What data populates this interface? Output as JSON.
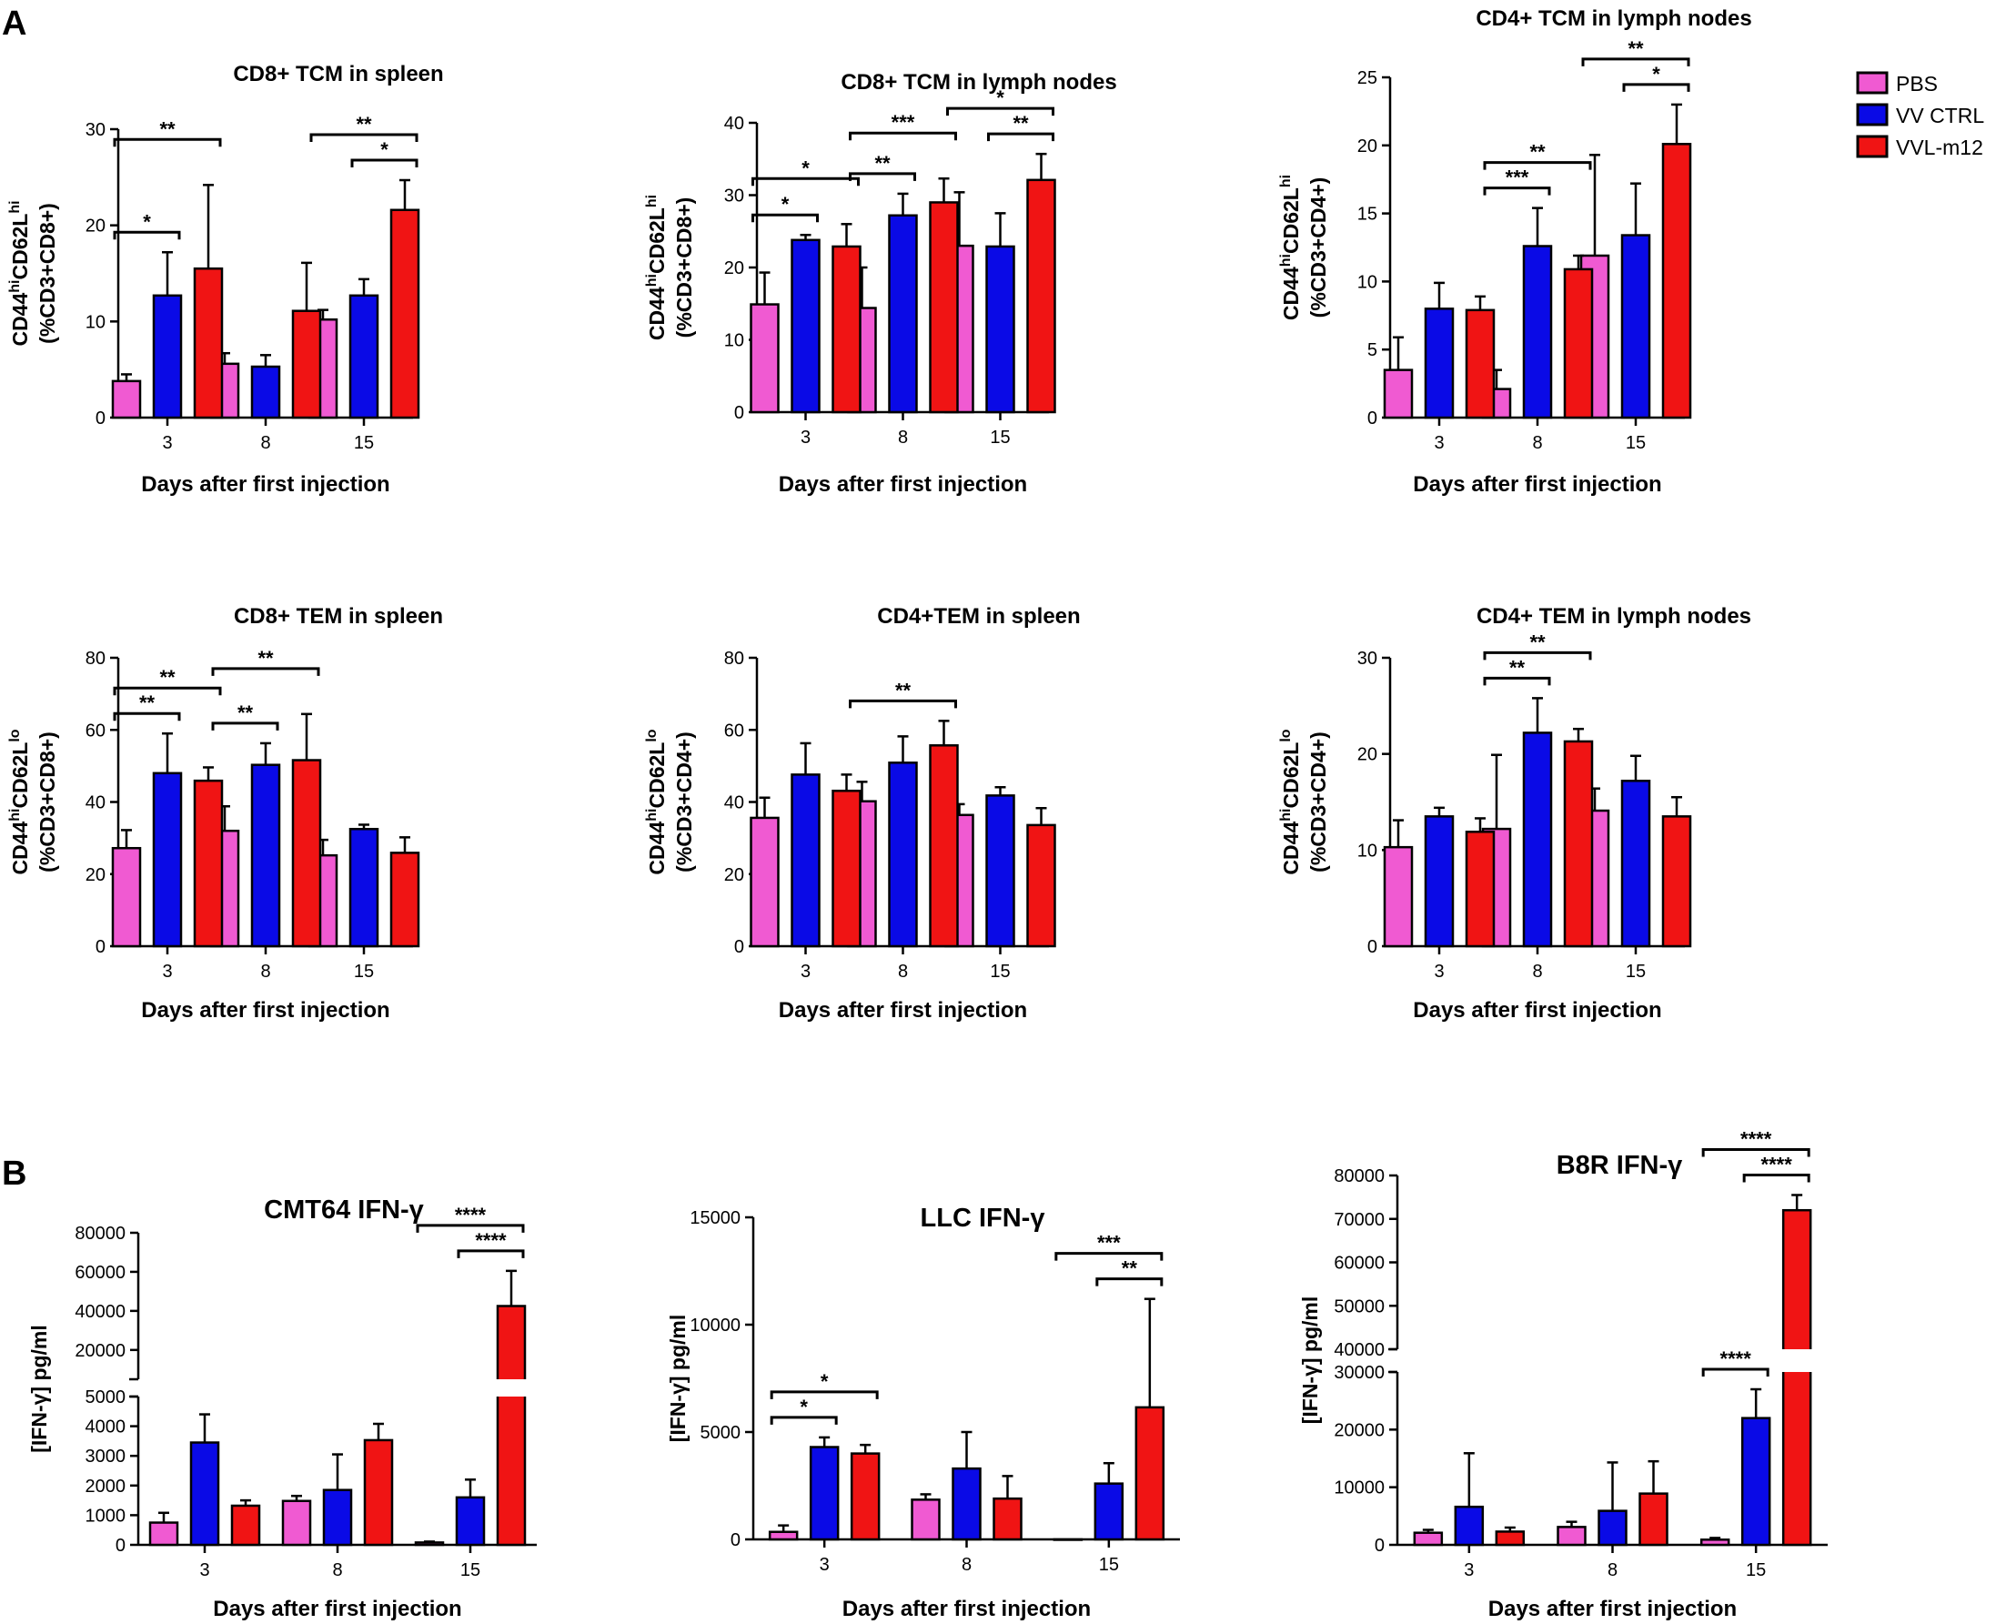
{
  "figure": {
    "panel_labels": [
      "A",
      "B"
    ],
    "colors": {
      "PBS": "#f05ad2",
      "VV CTRL": "#0a0ae6",
      "VVL-m12": "#f01414",
      "axis": "#000000"
    }
  },
  "legend": {
    "entries": [
      {
        "label": "PBS",
        "color": "#f05ad2"
      },
      {
        "label": "VV CTRL",
        "color": "#0a0ae6"
      },
      {
        "label": "VVL-m12",
        "color": "#f01414"
      }
    ]
  },
  "chart_data": [
    {
      "type": "bar",
      "title": "CD8+ TCM in spleen",
      "xlabel": "Days after first injection",
      "ylabel": [
        "CD44",
        "hi",
        "CD62L",
        "hi",
        "(%CD3+CD8+)"
      ],
      "categories": [
        "3",
        "8",
        "15"
      ],
      "ylim": [
        0,
        30
      ],
      "yticks": [
        0,
        10,
        20,
        30
      ],
      "series": [
        {
          "name": "PBS",
          "values": [
            3.8,
            5.6,
            10.2
          ],
          "errors": [
            0.7,
            1.1,
            1.0
          ]
        },
        {
          "name": "VV CTRL",
          "values": [
            12.7,
            5.3,
            12.7
          ],
          "errors": [
            4.5,
            1.2,
            1.7
          ]
        },
        {
          "name": "VVL-m12",
          "values": [
            15.5,
            11.1,
            21.6
          ],
          "errors": [
            8.7,
            5.0,
            3.1
          ]
        }
      ],
      "significance": [
        {
          "from": [
            0,
            0
          ],
          "to": [
            0,
            1
          ],
          "label": "*",
          "level": 0
        },
        {
          "from": [
            0,
            0
          ],
          "to": [
            0,
            2
          ],
          "label": "**",
          "level": 1
        },
        {
          "from": [
            2,
            1
          ],
          "to": [
            2,
            2
          ],
          "label": "*",
          "level": 0
        },
        {
          "from": [
            2,
            0
          ],
          "to": [
            2,
            2
          ],
          "label": "**",
          "level": 1
        }
      ]
    },
    {
      "type": "bar",
      "title": "CD8+ TCM in lymph nodes",
      "xlabel": "Days after first injection",
      "ylabel": [
        "CD44",
        "hi",
        "CD62L",
        "hi",
        "(%CD3+CD8+)"
      ],
      "categories": [
        "3",
        "8",
        "15"
      ],
      "ylim": [
        0,
        40
      ],
      "yticks": [
        0,
        10,
        20,
        30,
        40
      ],
      "series": [
        {
          "name": "PBS",
          "values": [
            14.9,
            14.4,
            23.0
          ],
          "errors": [
            4.4,
            5.6,
            7.4
          ]
        },
        {
          "name": "VV CTRL",
          "values": [
            23.8,
            27.2,
            22.9
          ],
          "errors": [
            0.7,
            3.0,
            4.6
          ]
        },
        {
          "name": "VVL-m12",
          "values": [
            22.9,
            29.0,
            32.1
          ],
          "errors": [
            3.1,
            3.3,
            3.6
          ]
        }
      ],
      "significance": [
        {
          "from": [
            0,
            0
          ],
          "to": [
            0,
            1
          ],
          "label": "*",
          "level": 0
        },
        {
          "from": [
            0,
            0
          ],
          "to": [
            0,
            2
          ],
          "label": "*",
          "level": 1
        },
        {
          "from": [
            1,
            0
          ],
          "to": [
            1,
            1
          ],
          "label": "**",
          "level": 0
        },
        {
          "from": [
            1,
            0
          ],
          "to": [
            1,
            2
          ],
          "label": "***",
          "level": 1
        },
        {
          "from": [
            2,
            1
          ],
          "to": [
            2,
            2
          ],
          "label": "**",
          "level": 0
        },
        {
          "from": [
            2,
            0
          ],
          "to": [
            2,
            2
          ],
          "label": "*",
          "level": 1
        }
      ]
    },
    {
      "type": "bar",
      "title": "CD4+ TCM in lymph nodes",
      "xlabel": "Days after first injection",
      "ylabel": [
        "CD44",
        "hi",
        "CD62L",
        "hi",
        "(%CD3+CD4+)"
      ],
      "categories": [
        "3",
        "8",
        "15"
      ],
      "ylim": [
        0,
        25
      ],
      "yticks": [
        0,
        5,
        10,
        15,
        20,
        25
      ],
      "series": [
        {
          "name": "PBS",
          "values": [
            3.5,
            2.1,
            11.9
          ],
          "errors": [
            2.4,
            1.4,
            7.4
          ]
        },
        {
          "name": "VV CTRL",
          "values": [
            8.0,
            12.6,
            13.4
          ],
          "errors": [
            1.9,
            2.8,
            3.8
          ]
        },
        {
          "name": "VVL-m12",
          "values": [
            7.9,
            10.9,
            20.1
          ],
          "errors": [
            1.0,
            1.0,
            2.9
          ]
        }
      ],
      "significance": [
        {
          "from": [
            1,
            0
          ],
          "to": [
            1,
            1
          ],
          "label": "***",
          "level": 0
        },
        {
          "from": [
            1,
            0
          ],
          "to": [
            1,
            2
          ],
          "label": "**",
          "level": 1
        },
        {
          "from": [
            2,
            1
          ],
          "to": [
            2,
            2
          ],
          "label": "*",
          "level": 0
        },
        {
          "from": [
            2,
            0
          ],
          "to": [
            2,
            2
          ],
          "label": "**",
          "level": 1
        }
      ]
    },
    {
      "type": "bar",
      "title": "CD8+ TEM in spleen",
      "xlabel": "Days after first injection",
      "ylabel": [
        "CD44",
        "hi",
        "CD62L",
        "lo",
        "(%CD3+CD8+)"
      ],
      "categories": [
        "3",
        "8",
        "15"
      ],
      "ylim": [
        0,
        80
      ],
      "yticks": [
        0,
        20,
        40,
        60,
        80
      ],
      "series": [
        {
          "name": "PBS",
          "values": [
            27.2,
            32.0,
            25.2
          ],
          "errors": [
            5.0,
            6.8,
            4.3
          ]
        },
        {
          "name": "VV CTRL",
          "values": [
            48.0,
            50.3,
            32.5
          ],
          "errors": [
            11.0,
            6.0,
            1.2
          ]
        },
        {
          "name": "VVL-m12",
          "values": [
            45.9,
            51.6,
            25.9
          ],
          "errors": [
            3.7,
            12.8,
            4.3
          ]
        }
      ],
      "significance": [
        {
          "from": [
            0,
            0
          ],
          "to": [
            0,
            1
          ],
          "label": "**",
          "level": 0
        },
        {
          "from": [
            0,
            0
          ],
          "to": [
            0,
            2
          ],
          "label": "**",
          "level": 1
        },
        {
          "from": [
            1,
            0
          ],
          "to": [
            1,
            1
          ],
          "label": "**",
          "level": 0
        },
        {
          "from": [
            1,
            0
          ],
          "to": [
            1,
            2
          ],
          "label": "**",
          "level": 1
        }
      ]
    },
    {
      "type": "bar",
      "title": "CD4+TEM in spleen",
      "xlabel": "Days after first injection",
      "ylabel": [
        "CD44",
        "hi",
        "CD62L",
        "lo",
        "(%CD3+CD4+)"
      ],
      "categories": [
        "3",
        "8",
        "15"
      ],
      "ylim": [
        0,
        80
      ],
      "yticks": [
        0,
        20,
        40,
        60,
        80
      ],
      "series": [
        {
          "name": "PBS",
          "values": [
            35.6,
            40.2,
            36.4
          ],
          "errors": [
            5.6,
            5.4,
            3.0
          ]
        },
        {
          "name": "VV CTRL",
          "values": [
            47.6,
            50.9,
            41.8
          ],
          "errors": [
            8.7,
            7.3,
            2.3
          ]
        },
        {
          "name": "VVL-m12",
          "values": [
            43.1,
            55.7,
            33.6
          ],
          "errors": [
            4.5,
            6.8,
            4.7
          ]
        }
      ],
      "significance": [
        {
          "from": [
            1,
            0
          ],
          "to": [
            1,
            2
          ],
          "label": "**",
          "level": 0
        }
      ]
    },
    {
      "type": "bar",
      "title": "CD4+ TEM in lymph nodes",
      "xlabel": "Days after first injection",
      "ylabel": [
        "CD44",
        "hi",
        "CD62L",
        "lo",
        "(%CD3+CD4+)"
      ],
      "categories": [
        "3",
        "8",
        "15"
      ],
      "ylim": [
        0,
        30
      ],
      "yticks": [
        0,
        10,
        20,
        30
      ],
      "series": [
        {
          "name": "PBS",
          "values": [
            10.3,
            12.2,
            14.1
          ],
          "errors": [
            2.8,
            7.7,
            2.3
          ]
        },
        {
          "name": "VV CTRL",
          "values": [
            13.5,
            22.2,
            17.2
          ],
          "errors": [
            0.9,
            3.6,
            2.6
          ]
        },
        {
          "name": "VVL-m12",
          "values": [
            11.9,
            21.3,
            13.5
          ],
          "errors": [
            1.4,
            1.3,
            2.0
          ]
        }
      ],
      "significance": [
        {
          "from": [
            1,
            0
          ],
          "to": [
            1,
            1
          ],
          "label": "**",
          "level": 0
        },
        {
          "from": [
            1,
            0
          ],
          "to": [
            1,
            2
          ],
          "label": "**",
          "level": 1
        }
      ]
    },
    {
      "type": "bar",
      "title": "CMT64 IFN-γ",
      "xlabel": "Days after first injection",
      "ylabel": [
        "[IFN-γ] pg/ml"
      ],
      "categories": [
        "3",
        "8",
        "15"
      ],
      "broken_axis": {
        "lower": [
          0,
          5000
        ],
        "upper": [
          5000,
          80000
        ]
      },
      "yticks_lower": [
        0,
        1000,
        2000,
        3000,
        4000,
        5000
      ],
      "yticks_upper": [
        20000,
        40000,
        60000,
        80000
      ],
      "series": [
        {
          "name": "PBS",
          "values": [
            750,
            1480,
            80
          ],
          "errors": [
            330,
            170,
            30
          ]
        },
        {
          "name": "VV CTRL",
          "values": [
            3450,
            1850,
            1600
          ],
          "errors": [
            950,
            1200,
            600
          ]
        },
        {
          "name": "VVL-m12",
          "values": [
            1320,
            3530,
            42500
          ],
          "errors": [
            180,
            550,
            18000
          ]
        }
      ],
      "significance": [
        {
          "from": [
            2,
            1
          ],
          "to": [
            2,
            2
          ],
          "label": "****",
          "level": 0
        },
        {
          "from": [
            2,
            0
          ],
          "to": [
            2,
            2
          ],
          "label": "****",
          "level": 1
        }
      ]
    },
    {
      "type": "bar",
      "title": "LLC IFN-γ",
      "xlabel": "Days after first injection",
      "ylabel": [
        "[IFN-γ] pg/ml"
      ],
      "categories": [
        "3",
        "8",
        "15"
      ],
      "ylim": [
        0,
        15000
      ],
      "yticks": [
        0,
        5000,
        10000,
        15000
      ],
      "series": [
        {
          "name": "PBS",
          "values": [
            350,
            1850,
            0
          ],
          "errors": [
            300,
            250,
            0
          ]
        },
        {
          "name": "VV CTRL",
          "values": [
            4300,
            3300,
            2600
          ],
          "errors": [
            450,
            1700,
            950
          ]
        },
        {
          "name": "VVL-m12",
          "values": [
            4000,
            1900,
            6150
          ],
          "errors": [
            400,
            1050,
            5050
          ]
        }
      ],
      "significance": [
        {
          "from": [
            0,
            0
          ],
          "to": [
            0,
            1
          ],
          "label": "*",
          "level": 0
        },
        {
          "from": [
            0,
            0
          ],
          "to": [
            0,
            2
          ],
          "label": "*",
          "level": 1
        },
        {
          "from": [
            2,
            1
          ],
          "to": [
            2,
            2
          ],
          "label": "**",
          "level": 0
        },
        {
          "from": [
            2,
            0
          ],
          "to": [
            2,
            2
          ],
          "label": "***",
          "level": 1
        }
      ]
    },
    {
      "type": "bar",
      "title": "B8R IFN-γ",
      "xlabel": "Days after first injection",
      "ylabel": [
        "[IFN-γ] pg/ml"
      ],
      "categories": [
        "3",
        "8",
        "15"
      ],
      "broken_axis": {
        "lower": [
          0,
          30000
        ],
        "upper": [
          40000,
          80000
        ]
      },
      "yticks_lower": [
        0,
        10000,
        20000,
        30000
      ],
      "yticks_upper": [
        40000,
        50000,
        60000,
        70000,
        80000
      ],
      "series": [
        {
          "name": "PBS",
          "values": [
            2100,
            3100,
            900
          ],
          "errors": [
            500,
            900,
            300
          ]
        },
        {
          "name": "VV CTRL",
          "values": [
            6600,
            5900,
            22000
          ],
          "errors": [
            9300,
            8400,
            5000
          ]
        },
        {
          "name": "VVL-m12",
          "values": [
            2300,
            8900,
            72000
          ],
          "errors": [
            700,
            5600,
            3500
          ]
        }
      ],
      "significance": [
        {
          "from": [
            2,
            0
          ],
          "to": [
            2,
            1
          ],
          "label": "****",
          "level": 0,
          "zone": "lower"
        },
        {
          "from": [
            2,
            1
          ],
          "to": [
            2,
            2
          ],
          "label": "****",
          "level": 0
        },
        {
          "from": [
            2,
            0
          ],
          "to": [
            2,
            2
          ],
          "label": "****",
          "level": 1
        }
      ]
    }
  ]
}
